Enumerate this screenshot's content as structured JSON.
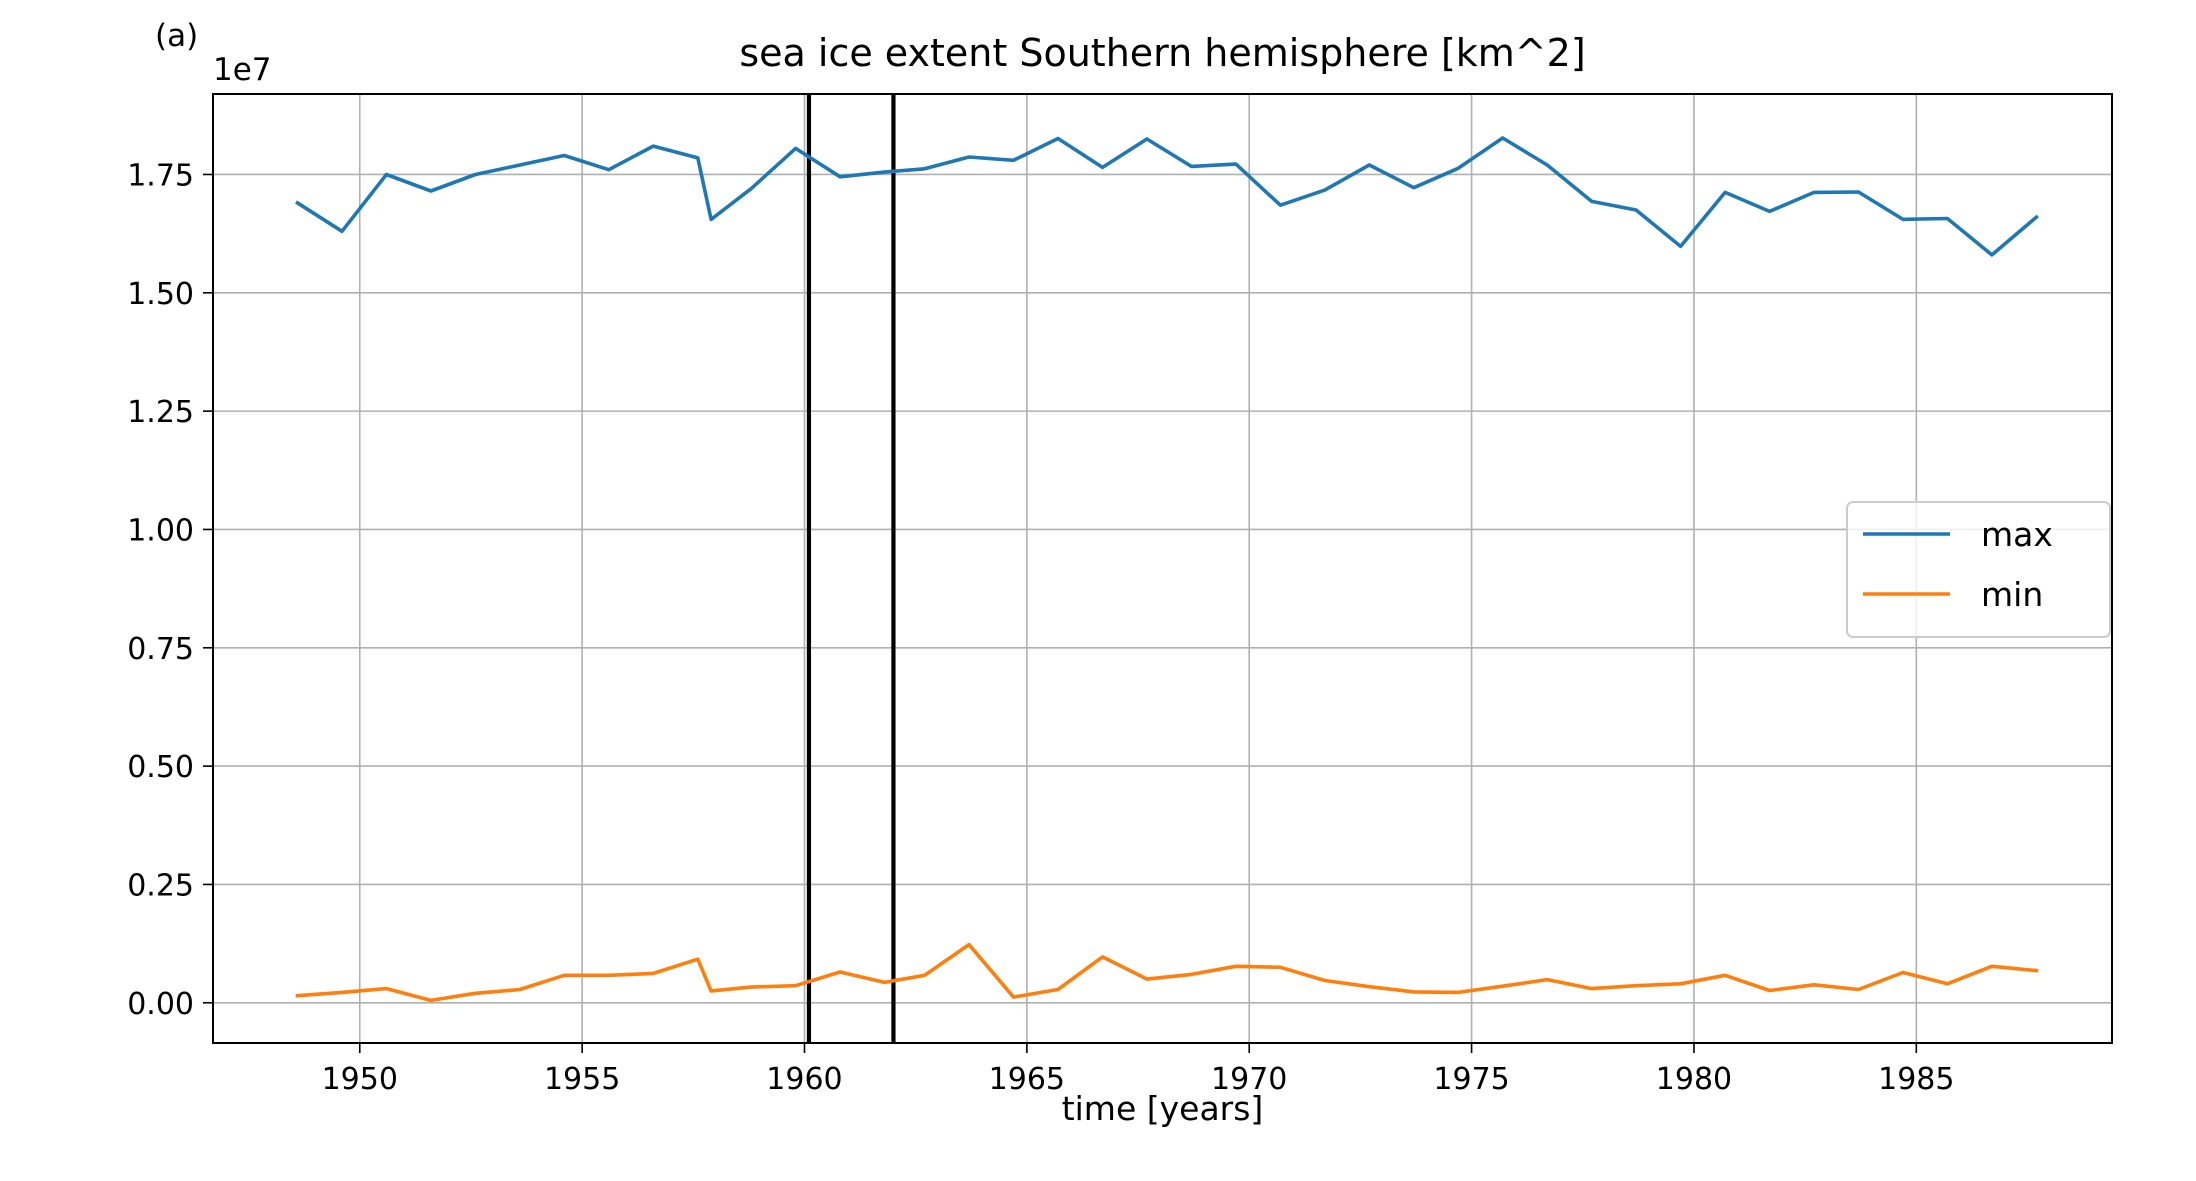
{
  "panel_label": "(a)",
  "chart_data": {
    "type": "line",
    "title": "sea ice extent Southern hemisphere [km^2]",
    "xlabel": "time [years]",
    "ylabel": "",
    "y_offset_label": "1e7",
    "xlim": [
      1946.7,
      1989.4
    ],
    "ylim": [
      -0.085,
      1.92
    ],
    "x_ticks": [
      1950,
      1955,
      1960,
      1965,
      1970,
      1975,
      1980,
      1985
    ],
    "y_ticks": [
      0.0,
      0.25,
      0.5,
      0.75,
      1.0,
      1.25,
      1.5,
      1.75
    ],
    "y_tick_labels": [
      "0.00",
      "0.25",
      "0.50",
      "0.75",
      "1.00",
      "1.25",
      "1.50",
      "1.75"
    ],
    "grid": true,
    "legend_position": "center-right",
    "vertical_lines": [
      1960.1,
      1962.0
    ],
    "series": [
      {
        "name": "max",
        "color": "#1f77b4",
        "x": [
          1948.6,
          1949.6,
          1950.6,
          1951.6,
          1952.6,
          1953.6,
          1954.6,
          1955.6,
          1956.6,
          1957.6,
          1957.9,
          1958.8,
          1959.8,
          1960.8,
          1961.8,
          1962.7,
          1963.7,
          1964.7,
          1965.7,
          1966.7,
          1967.7,
          1968.7,
          1969.7,
          1970.7,
          1971.7,
          1972.7,
          1973.7,
          1974.7,
          1975.7,
          1976.7,
          1977.7,
          1978.7,
          1979.7,
          1980.7,
          1981.7,
          1982.7,
          1983.7,
          1984.7,
          1985.7,
          1986.7,
          1987.7
        ],
        "y": [
          1.69,
          1.63,
          1.75,
          1.715,
          1.75,
          1.77,
          1.79,
          1.76,
          1.81,
          1.785,
          1.655,
          1.72,
          1.805,
          1.745,
          1.755,
          1.762,
          1.787,
          1.78,
          1.826,
          1.765,
          1.825,
          1.767,
          1.772,
          1.685,
          1.717,
          1.77,
          1.722,
          1.763,
          1.827,
          1.77,
          1.693,
          1.675,
          1.598,
          1.712,
          1.672,
          1.712,
          1.713,
          1.655,
          1.657,
          1.58,
          1.66
        ]
      },
      {
        "name": "min",
        "color": "#ff7f0e",
        "x": [
          1948.6,
          1949.6,
          1950.6,
          1951.6,
          1952.6,
          1953.6,
          1954.6,
          1955.6,
          1956.6,
          1957.6,
          1957.9,
          1958.8,
          1959.8,
          1960.8,
          1961.8,
          1962.7,
          1963.7,
          1964.7,
          1965.7,
          1966.7,
          1967.7,
          1968.7,
          1969.7,
          1970.7,
          1971.7,
          1972.7,
          1973.7,
          1974.7,
          1975.7,
          1976.7,
          1977.7,
          1978.7,
          1979.7,
          1980.7,
          1981.7,
          1982.7,
          1983.7,
          1984.7,
          1985.7,
          1986.7,
          1987.7
        ],
        "y": [
          0.015,
          0.022,
          0.03,
          0.005,
          0.02,
          0.028,
          0.058,
          0.058,
          0.062,
          0.092,
          0.025,
          0.033,
          0.036,
          0.065,
          0.043,
          0.058,
          0.123,
          0.012,
          0.028,
          0.097,
          0.05,
          0.06,
          0.077,
          0.075,
          0.047,
          0.034,
          0.023,
          0.022,
          0.035,
          0.049,
          0.03,
          0.036,
          0.04,
          0.058,
          0.026,
          0.038,
          0.028,
          0.064,
          0.04,
          0.077,
          0.068
        ]
      }
    ]
  }
}
